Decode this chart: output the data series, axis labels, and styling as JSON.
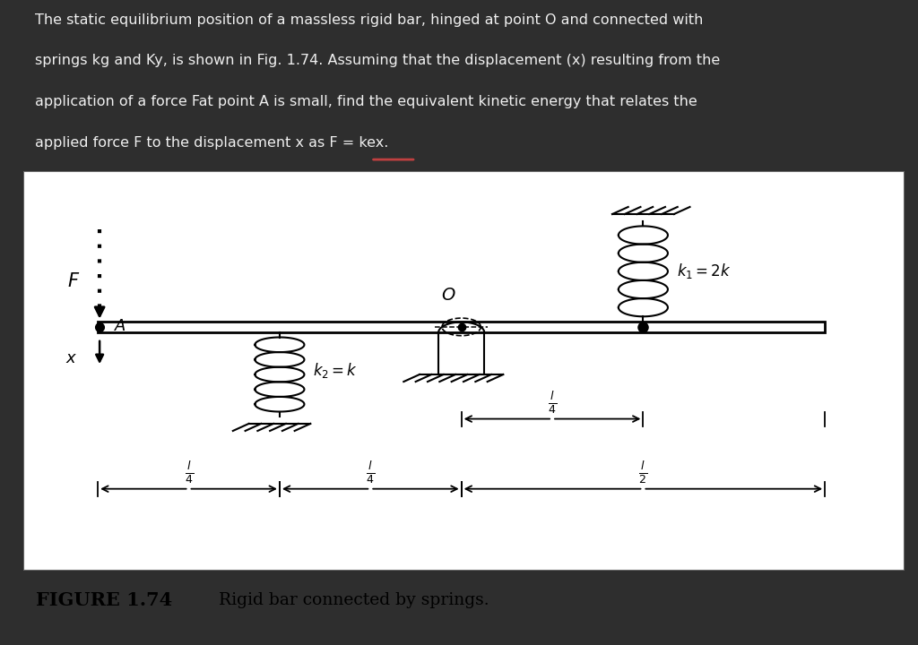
{
  "bg_top": "#2e2e2e",
  "bg_diagram": "#ffffff",
  "text_color_top": "#f0f0f0",
  "top_text_line1": "The static equilibrium position of a massless rigid bar, hinged at point O and connected with",
  "top_text_line2": "springs kg and Ky, is shown in Fig. 1.74. Assuming that the displacement (x) resulting from the",
  "top_text_line3": "application of a force Fat point A is small, find the equivalent kinetic energy that relates the",
  "top_text_line4": "applied force F to the displacement x as F = kex.",
  "figure_caption_bold": "FIGURE 1.74",
  "figure_caption_rest": "  Rigid bar connected by springs.",
  "k1_label": "$k_1 = 2k$",
  "k2_label": "$k_2 = k$",
  "label_O": "$O$",
  "label_F": "$F$",
  "label_A": "$A$",
  "label_x": "$x$"
}
